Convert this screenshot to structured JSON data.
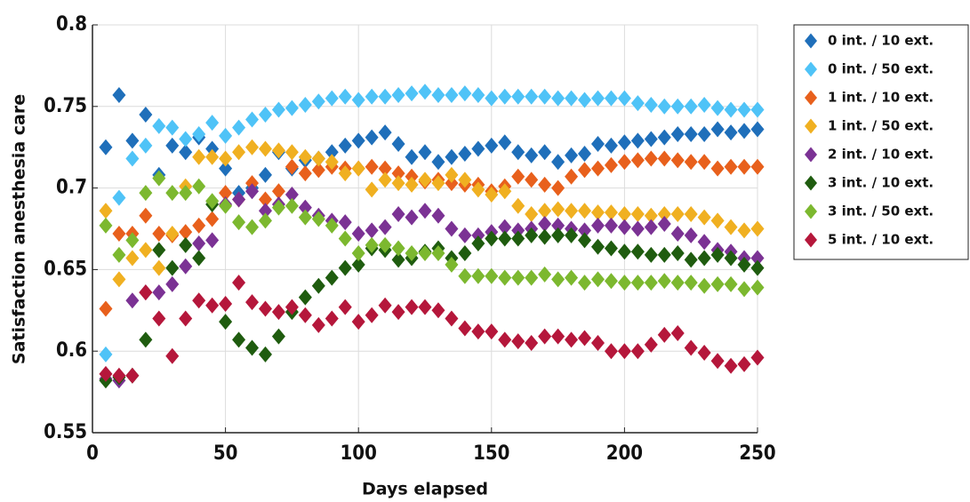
{
  "chart_data": {
    "type": "scatter",
    "x_label": "Days elapsed",
    "y_label": "Satisfaction anesthesia care",
    "xlim": [
      0,
      250
    ],
    "xticks": [
      0,
      50,
      100,
      150,
      200,
      250
    ],
    "ylim": [
      0.55,
      0.8
    ],
    "yticks": [
      0.55,
      0.6,
      0.65,
      0.7,
      0.75,
      0.8
    ],
    "grid": true,
    "legend": "outside-right",
    "x": [
      5,
      10,
      15,
      20,
      25,
      30,
      35,
      40,
      45,
      50,
      55,
      60,
      65,
      70,
      75,
      80,
      85,
      90,
      95,
      100,
      105,
      110,
      115,
      120,
      125,
      130,
      135,
      140,
      145,
      150,
      155,
      160,
      165,
      170,
      175,
      180,
      185,
      190,
      195,
      200,
      205,
      210,
      215,
      220,
      225,
      230,
      235,
      240,
      245,
      250
    ],
    "series": [
      {
        "name": "0 int. / 10 ext.",
        "color": "#1f6fba",
        "values": [
          0.725,
          0.757,
          0.729,
          0.745,
          0.708,
          0.726,
          0.722,
          0.731,
          0.724,
          0.712,
          0.697,
          0.7,
          0.708,
          0.722,
          0.712,
          0.717,
          0.718,
          0.722,
          0.726,
          0.729,
          0.731,
          0.734,
          0.727,
          0.719,
          0.722,
          0.716,
          0.719,
          0.721,
          0.724,
          0.726,
          0.728,
          0.722,
          0.72,
          0.722,
          0.716,
          0.72,
          0.721,
          0.727,
          0.726,
          0.728,
          0.729,
          0.73,
          0.731,
          0.733,
          0.733,
          0.733,
          0.736,
          0.734,
          0.735,
          0.736
        ]
      },
      {
        "name": "0 int. / 50 ext.",
        "color": "#4fc3f7",
        "values": [
          0.598,
          0.694,
          0.718,
          0.726,
          0.738,
          0.737,
          0.73,
          0.733,
          0.74,
          0.732,
          0.737,
          0.742,
          0.745,
          0.748,
          0.749,
          0.751,
          0.753,
          0.755,
          0.756,
          0.754,
          0.756,
          0.756,
          0.757,
          0.758,
          0.759,
          0.757,
          0.757,
          0.758,
          0.757,
          0.755,
          0.756,
          0.756,
          0.756,
          0.756,
          0.755,
          0.755,
          0.754,
          0.755,
          0.755,
          0.755,
          0.752,
          0.751,
          0.75,
          0.75,
          0.75,
          0.751,
          0.749,
          0.748,
          0.748,
          0.748
        ]
      },
      {
        "name": "1 int. / 10 ext.",
        "color": "#e8601c",
        "values": [
          0.626,
          0.672,
          0.672,
          0.683,
          0.672,
          0.671,
          0.673,
          0.677,
          0.681,
          0.697,
          0.693,
          0.703,
          0.693,
          0.698,
          0.713,
          0.709,
          0.711,
          0.713,
          0.712,
          0.712,
          0.713,
          0.712,
          0.709,
          0.707,
          0.704,
          0.705,
          0.703,
          0.702,
          0.702,
          0.698,
          0.701,
          0.707,
          0.705,
          0.702,
          0.7,
          0.707,
          0.711,
          0.712,
          0.714,
          0.716,
          0.717,
          0.718,
          0.718,
          0.717,
          0.716,
          0.716,
          0.712,
          0.713,
          0.713,
          0.713
        ]
      },
      {
        "name": "1 int. / 50 ext.",
        "color": "#f0b021",
        "values": [
          0.686,
          0.644,
          0.657,
          0.662,
          0.651,
          0.672,
          0.701,
          0.719,
          0.719,
          0.718,
          0.722,
          0.725,
          0.724,
          0.723,
          0.722,
          0.719,
          0.718,
          0.716,
          0.709,
          0.712,
          0.699,
          0.705,
          0.703,
          0.702,
          0.705,
          0.703,
          0.708,
          0.705,
          0.699,
          0.696,
          0.698,
          0.689,
          0.684,
          0.686,
          0.687,
          0.686,
          0.686,
          0.685,
          0.685,
          0.684,
          0.684,
          0.683,
          0.684,
          0.684,
          0.684,
          0.682,
          0.68,
          0.676,
          0.674,
          0.675
        ]
      },
      {
        "name": "2 int. / 10 ext.",
        "color": "#7b3294",
        "values": [
          0.583,
          0.582,
          0.631,
          0.636,
          0.636,
          0.641,
          0.652,
          0.666,
          0.668,
          0.69,
          0.693,
          0.698,
          0.686,
          0.69,
          0.696,
          0.688,
          0.683,
          0.68,
          0.679,
          0.672,
          0.674,
          0.676,
          0.684,
          0.682,
          0.686,
          0.683,
          0.675,
          0.671,
          0.671,
          0.673,
          0.676,
          0.674,
          0.675,
          0.678,
          0.677,
          0.675,
          0.674,
          0.677,
          0.677,
          0.676,
          0.675,
          0.676,
          0.678,
          0.672,
          0.671,
          0.667,
          0.662,
          0.661,
          0.657,
          0.657
        ]
      },
      {
        "name": "3 int. / 10 ext.",
        "color": "#1f5c0f",
        "values": [
          0.582,
          0.584,
          0.585,
          0.607,
          0.662,
          0.651,
          0.665,
          0.657,
          0.69,
          0.618,
          0.607,
          0.602,
          0.598,
          0.609,
          0.624,
          0.633,
          0.64,
          0.645,
          0.651,
          0.653,
          0.663,
          0.662,
          0.656,
          0.657,
          0.661,
          0.663,
          0.657,
          0.66,
          0.666,
          0.669,
          0.669,
          0.669,
          0.671,
          0.67,
          0.671,
          0.671,
          0.668,
          0.664,
          0.663,
          0.661,
          0.661,
          0.659,
          0.659,
          0.66,
          0.656,
          0.657,
          0.659,
          0.657,
          0.653,
          0.651
        ]
      },
      {
        "name": "3 int. / 50 ext.",
        "color": "#7cb82f",
        "values": [
          0.677,
          0.659,
          0.668,
          0.697,
          0.706,
          0.697,
          0.697,
          0.701,
          0.692,
          0.689,
          0.679,
          0.676,
          0.68,
          0.688,
          0.689,
          0.682,
          0.681,
          0.677,
          0.669,
          0.66,
          0.665,
          0.665,
          0.663,
          0.66,
          0.66,
          0.66,
          0.653,
          0.646,
          0.646,
          0.646,
          0.645,
          0.645,
          0.645,
          0.647,
          0.644,
          0.645,
          0.642,
          0.644,
          0.643,
          0.642,
          0.642,
          0.642,
          0.643,
          0.642,
          0.642,
          0.64,
          0.641,
          0.641,
          0.638,
          0.639
        ]
      },
      {
        "name": "5 int. / 10 ext.",
        "color": "#b5173b",
        "values": [
          0.586,
          0.585,
          0.585,
          0.636,
          0.62,
          0.597,
          0.62,
          0.631,
          0.628,
          0.629,
          0.642,
          0.63,
          0.626,
          0.624,
          0.627,
          0.622,
          0.616,
          0.62,
          0.627,
          0.618,
          0.622,
          0.628,
          0.624,
          0.627,
          0.627,
          0.625,
          0.62,
          0.614,
          0.612,
          0.612,
          0.607,
          0.606,
          0.605,
          0.609,
          0.609,
          0.607,
          0.608,
          0.605,
          0.6,
          0.6,
          0.6,
          0.604,
          0.61,
          0.611,
          0.602,
          0.599,
          0.594,
          0.591,
          0.592,
          0.596
        ]
      }
    ]
  }
}
